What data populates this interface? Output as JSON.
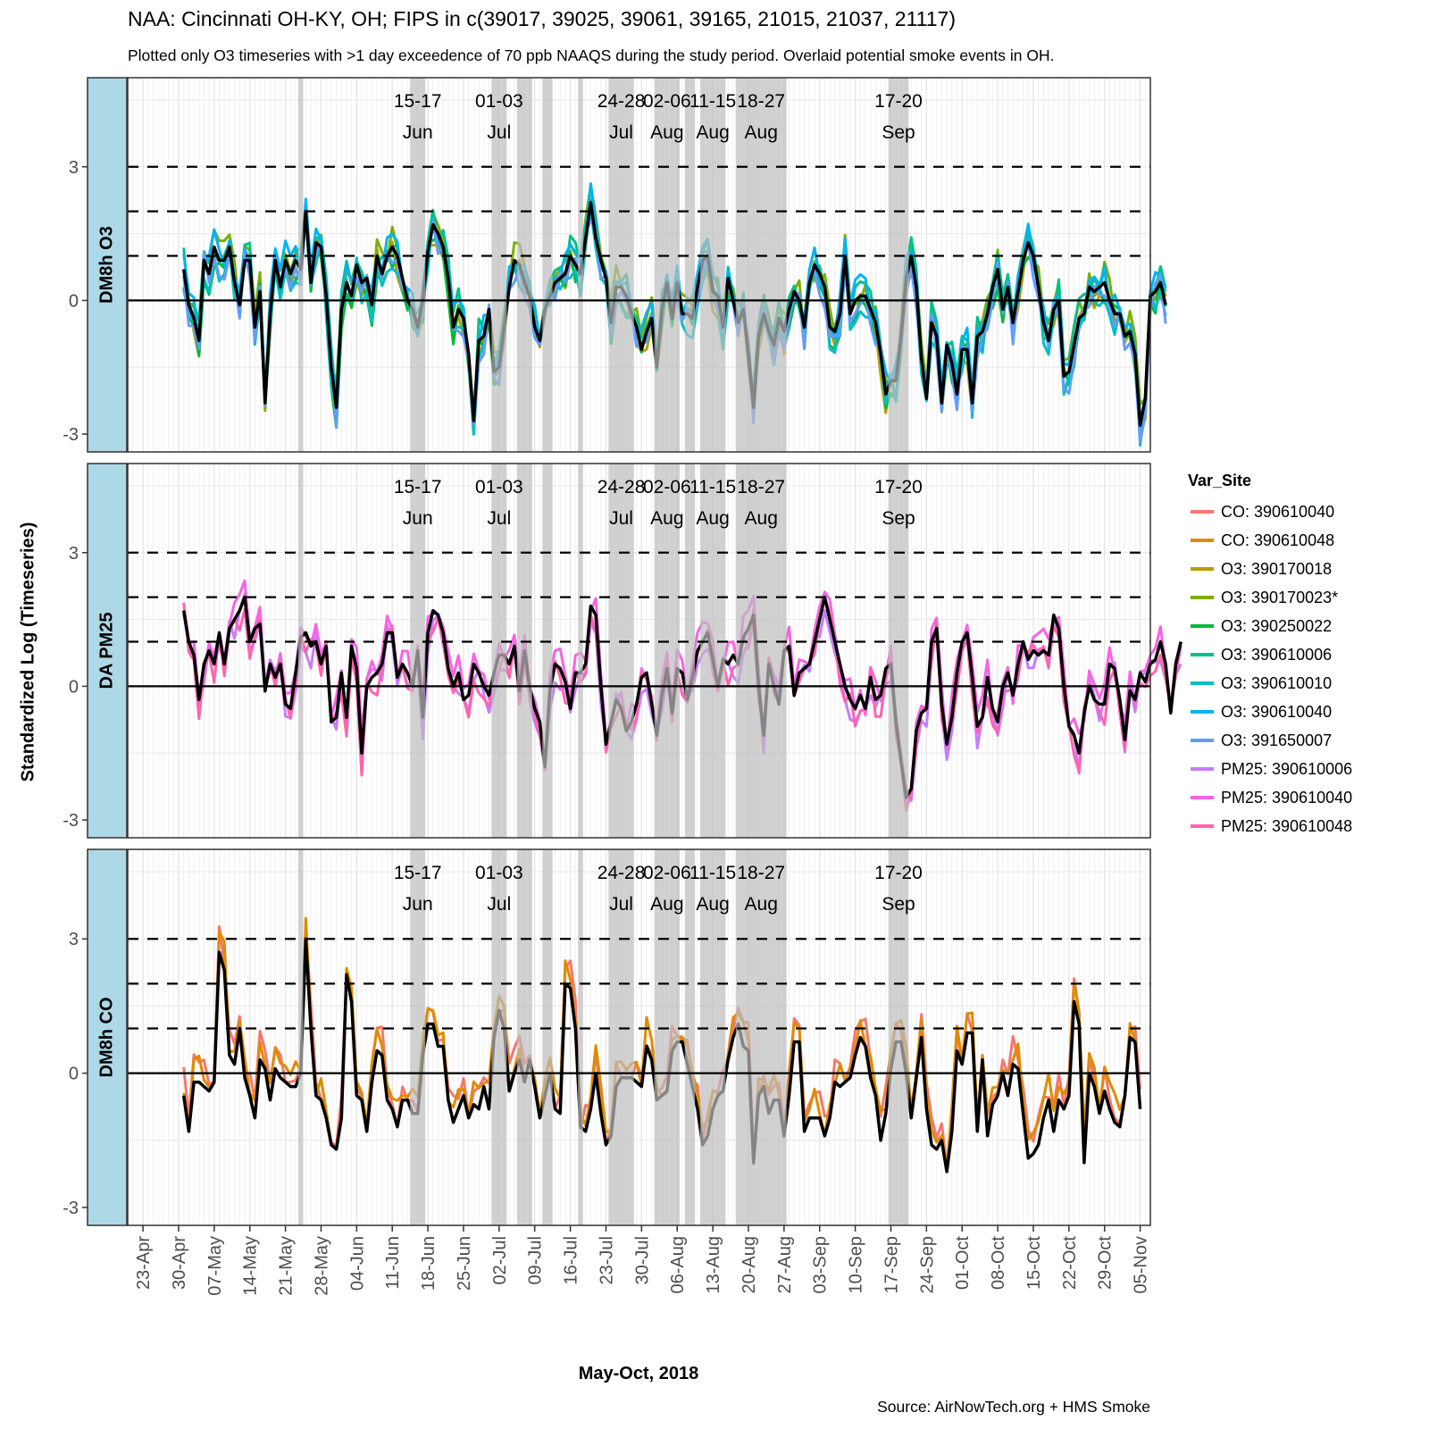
{
  "chart_data": {
    "type": "line",
    "title": "NAA: Cincinnati OH-KY, OH; FIPS in c(39017, 39025, 39061, 39165, 21015, 21037, 21117)",
    "subtitle": "Plotted only O3 timeseries with >1 day exceedence of 70 ppb NAAQS during the study period. Overlaid potential smoke events in OH.",
    "xlabel": "May-Oct, 2018",
    "ylabel": "Standardized Log (Timeseries)",
    "caption": "Source: AirNowTech.org + HMS Smoke",
    "x_range": [
      "2018-04-20",
      "2018-11-07"
    ],
    "x_ticks": [
      "23-Apr",
      "30-Apr",
      "07-May",
      "14-May",
      "21-May",
      "28-May",
      "04-Jun",
      "11-Jun",
      "18-Jun",
      "25-Jun",
      "02-Jul",
      "09-Jul",
      "16-Jul",
      "23-Jul",
      "30-Jul",
      "06-Aug",
      "13-Aug",
      "20-Aug",
      "27-Aug",
      "03-Sep",
      "10-Sep",
      "17-Sep",
      "24-Sep",
      "01-Oct",
      "08-Oct",
      "15-Oct",
      "22-Oct",
      "29-Oct",
      "05-Nov"
    ],
    "y_range": [
      -3.4,
      5.0
    ],
    "y_ticks": [
      -3,
      0,
      3
    ],
    "reference_lines": {
      "solid": [
        0
      ],
      "dashed": [
        1,
        2,
        3
      ]
    },
    "grid": true,
    "legend_title": "Var_Site",
    "legend_position": "right",
    "legend": [
      {
        "label": "CO: 390610040",
        "color": "#F8766D"
      },
      {
        "label": "CO: 390610048",
        "color": "#DE8C00"
      },
      {
        "label": "O3: 390170018",
        "color": "#B79F00"
      },
      {
        "label": "O3: 390170023*",
        "color": "#7CAE00"
      },
      {
        "label": "O3: 390250022",
        "color": "#00BA38"
      },
      {
        "label": "O3: 390610006",
        "color": "#00C08B"
      },
      {
        "label": "O3: 390610010",
        "color": "#00BFC4"
      },
      {
        "label": "O3: 390610040",
        "color": "#00B4F0"
      },
      {
        "label": "O3: 391650007",
        "color": "#619CFF"
      },
      {
        "label": "PM25: 390610006",
        "color": "#C77CFF"
      },
      {
        "label": "PM25: 390610040",
        "color": "#F564E3"
      },
      {
        "label": "PM25: 390610048",
        "color": "#FF64B0"
      }
    ],
    "smoke_events": [
      {
        "start": "2018-05-24",
        "end": "2018-05-24",
        "label_top": "",
        "label_bottom": ""
      },
      {
        "start": "2018-06-15",
        "end": "2018-06-17",
        "label_top": "15-17",
        "label_bottom": "Jun"
      },
      {
        "start": "2018-07-01",
        "end": "2018-07-03",
        "label_top": "01-03",
        "label_bottom": "Jul"
      },
      {
        "start": "2018-07-06",
        "end": "2018-07-07",
        "label_top": "",
        "label_bottom": ""
      },
      {
        "start": "2018-07-08",
        "end": "2018-07-08",
        "label_top": "",
        "label_bottom": ""
      },
      {
        "start": "2018-07-11",
        "end": "2018-07-12",
        "label_top": "",
        "label_bottom": ""
      },
      {
        "start": "2018-07-18",
        "end": "2018-07-18",
        "label_top": "",
        "label_bottom": ""
      },
      {
        "start": "2018-07-24",
        "end": "2018-07-28",
        "label_top": "24-28",
        "label_bottom": "Jul"
      },
      {
        "start": "2018-08-02",
        "end": "2018-08-06",
        "label_top": "02-06",
        "label_bottom": "Aug"
      },
      {
        "start": "2018-08-08",
        "end": "2018-08-09",
        "label_top": "",
        "label_bottom": ""
      },
      {
        "start": "2018-08-11",
        "end": "2018-08-15",
        "label_top": "11-15",
        "label_bottom": "Aug"
      },
      {
        "start": "2018-08-18",
        "end": "2018-08-27",
        "label_top": "18-27",
        "label_bottom": "Aug"
      },
      {
        "start": "2018-09-17",
        "end": "2018-09-20",
        "label_top": "17-20",
        "label_bottom": "Sep"
      }
    ],
    "panels": [
      {
        "strip": "DM8h O3",
        "series": [
          {
            "name": "O3: 390610040 (mean/bold)",
            "color": "#000000",
            "start": "2018-05-01",
            "values": [
              0.7,
              -0.1,
              -0.4,
              -0.9,
              0.9,
              0.6,
              1.2,
              0.9,
              0.9,
              1.2,
              0.4,
              -0.1,
              0.9,
              0.9,
              -0.6,
              0.2,
              -2.3,
              -0.3,
              0.9,
              0.3,
              0.9,
              0.6,
              0.9,
              0.7,
              2.0,
              0.4,
              1.3,
              1.2,
              0.1,
              -1.5,
              -2.4,
              -0.2,
              0.4,
              0.1,
              0.8,
              0.4,
              0.5,
              -0.1,
              1.0,
              0.6,
              1.0,
              1.2,
              1.0,
              0.5,
              0.0,
              -0.2,
              -0.6,
              0.0,
              1.1,
              1.7,
              1.5,
              1.2,
              0.5,
              -0.6,
              -0.2,
              -0.4,
              -1.2,
              -2.7,
              -0.9,
              -0.8,
              -0.2,
              -1.6,
              -1.5,
              -0.6,
              0.3,
              0.9,
              0.8,
              0.4,
              0.1,
              -0.6,
              -0.9,
              -0.2,
              0.1,
              0.4,
              0.5,
              0.6,
              1.0,
              0.8,
              0.6,
              1.4,
              2.2,
              1.4,
              0.9,
              0.5,
              -0.5,
              0.3,
              0.3,
              0.1,
              -0.3,
              -0.6,
              -1.1,
              -0.7,
              -0.4,
              -1.5,
              -0.2,
              0.4,
              -0.4,
              0.4,
              -0.3,
              -0.3,
              -0.4,
              0.3,
              0.9,
              1.0,
              0.2,
              0.1,
              -0.6,
              0.5,
              0.0,
              -0.5,
              -0.2,
              -1.2,
              -2.4,
              -0.8,
              -0.3,
              -0.7,
              -1.0,
              -0.4,
              -0.7,
              -0.2,
              0.2,
              0.0,
              -0.6,
              0.4,
              0.8,
              0.6,
              0.3,
              -0.6,
              -0.7,
              -0.3,
              1.0,
              -0.3,
              0.0,
              0.1,
              0.1,
              -0.2,
              -0.5,
              -1.2,
              -2.1,
              -1.8,
              -1.8,
              -0.8,
              0.5,
              1.0,
              0.3,
              -1.3,
              -2.2,
              -0.5,
              -0.8,
              -2.3,
              -1.0,
              -1.4,
              -2.1,
              -1.1,
              -1.1,
              -2.3,
              -0.8,
              -0.7,
              -0.3,
              0.3,
              0.7,
              -0.2,
              0.3,
              -0.5,
              0.2,
              0.9,
              1.3,
              1.0,
              0.3,
              -0.5,
              -0.9,
              -0.2,
              0.0,
              -1.7,
              -1.6,
              -1.0,
              -0.4,
              -0.3,
              0.3,
              0.2,
              0.3,
              0.4,
              0.0,
              -0.3,
              -0.3,
              -0.8,
              -0.7,
              -1.2,
              -2.8,
              -2.2,
              0.1,
              0.2,
              0.4,
              -0.1
            ]
          },
          {
            "name": "O3 sites (others)",
            "colors": [
              "#B79F00",
              "#7CAE00",
              "#00BA38",
              "#00C08B",
              "#00BFC4",
              "#00B4F0",
              "#619CFF"
            ]
          }
        ]
      },
      {
        "strip": "DA PM25",
        "series": [
          {
            "name": "PM25 (mean/bold)",
            "color": "#000000",
            "start": "2018-05-01",
            "values": [
              1.7,
              1.0,
              0.7,
              -0.3,
              0.5,
              0.8,
              0.5,
              1.2,
              0.5,
              1.3,
              1.5,
              1.7,
              2.0,
              1.0,
              1.3,
              1.4,
              -0.1,
              0.5,
              0.2,
              0.5,
              -0.4,
              -0.5,
              0.3,
              1.1,
              1.2,
              0.9,
              1.0,
              0.5,
              0.9,
              -0.8,
              -0.7,
              0.3,
              -0.7,
              0.9,
              0.4,
              -1.5,
              0.0,
              0.2,
              0.3,
              0.5,
              1.2,
              1.2,
              0.2,
              0.5,
              0.3,
              0.0,
              0.8,
              -0.7,
              1.2,
              1.7,
              1.6,
              1.2,
              0.4,
              0.0,
              0.3,
              -0.3,
              -0.2,
              0.5,
              0.3,
              0.0,
              -0.2,
              0.3,
              0.7,
              0.7,
              0.5,
              0.9,
              -0.1,
              0.8,
              0.0,
              -0.5,
              -0.8,
              -1.8,
              -0.1,
              0.5,
              0.4,
              0.1,
              -0.5,
              0.3,
              0.3,
              0.5,
              1.8,
              1.6,
              0.0,
              -1.3,
              -0.8,
              -0.3,
              -0.5,
              -1.0,
              -0.8,
              -0.4,
              0.2,
              0.3,
              -0.4,
              -1.1,
              -0.2,
              0.4,
              -0.6,
              0.4,
              0.3,
              -0.3,
              0.2,
              0.8,
              1.0,
              1.2,
              0.6,
              0.0,
              0.6,
              0.5,
              0.7,
              0.5,
              1.1,
              1.3,
              1.6,
              0.0,
              -1.1,
              0.5,
              0.0,
              -0.4,
              0.8,
              0.9,
              -0.2,
              0.3,
              0.4,
              0.5,
              1.0,
              1.5,
              2.0,
              1.5,
              1.0,
              0.5,
              0.0,
              -0.3,
              -0.5,
              -0.2,
              -0.5,
              0.2,
              -0.3,
              -0.2,
              0.4,
              0.5,
              -0.8,
              -1.7,
              -2.5,
              -2.3,
              -1.0,
              -0.6,
              -0.5,
              1.0,
              1.3,
              -0.4,
              -1.3,
              -0.7,
              0.3,
              1.0,
              1.2,
              0.2,
              -0.9,
              -0.7,
              0.2,
              -0.5,
              -0.8,
              0.0,
              0.3,
              -0.2,
              0.5,
              1.0,
              0.6,
              0.8,
              0.7,
              0.8,
              0.7,
              1.6,
              1.3,
              0.0,
              -0.9,
              -1.1,
              -1.5,
              -0.6,
              0.0,
              -0.3,
              -0.4,
              -0.4,
              0.5,
              0.4,
              -0.3,
              -1.2,
              -0.1,
              -0.3,
              0.3,
              0.1,
              0.5,
              0.6,
              1.0,
              0.5,
              -0.6,
              0.5,
              1.0
            ]
          },
          {
            "name": "PM25 sites (others)",
            "colors": [
              "#C77CFF",
              "#F564E3",
              "#FF64B0"
            ]
          }
        ]
      },
      {
        "strip": "DM8h CO",
        "series": [
          {
            "name": "CO (mean/bold)",
            "color": "#000000",
            "start": "2018-05-01",
            "values": [
              -0.5,
              -1.3,
              -0.2,
              -0.2,
              -0.3,
              -0.4,
              -0.2,
              2.7,
              2.3,
              0.4,
              0.2,
              1.0,
              -0.1,
              -0.5,
              -1.0,
              0.3,
              0.1,
              -0.6,
              0.1,
              -0.1,
              -0.2,
              -0.3,
              -0.3,
              0.0,
              3.0,
              1.0,
              -0.5,
              -0.6,
              -1.0,
              -1.6,
              -1.7,
              -1.0,
              2.2,
              1.6,
              -0.5,
              -0.6,
              -1.3,
              -0.2,
              0.5,
              0.4,
              -0.6,
              -0.8,
              -1.2,
              -0.6,
              -0.6,
              -0.9,
              -0.9,
              0.4,
              1.1,
              1.1,
              0.6,
              0.6,
              -0.6,
              -1.1,
              -0.8,
              -0.5,
              -1.0,
              -0.7,
              -0.8,
              -0.3,
              -0.8,
              0.8,
              1.4,
              1.0,
              -0.4,
              0.0,
              0.3,
              -0.2,
              0.3,
              -0.3,
              -1.0,
              -0.5,
              0.0,
              -0.8,
              -0.9,
              2.0,
              1.9,
              1.0,
              -1.2,
              -1.3,
              -0.8,
              0.0,
              -0.9,
              -1.6,
              -1.4,
              -0.3,
              -0.1,
              -0.1,
              -0.1,
              -0.2,
              -0.3,
              0.6,
              0.3,
              -0.6,
              -0.5,
              -0.4,
              0.5,
              0.7,
              0.7,
              0.2,
              -0.3,
              -0.8,
              -1.6,
              -1.4,
              -0.8,
              -0.5,
              -0.4,
              0.3,
              0.8,
              1.1,
              0.6,
              0.5,
              -2.0,
              -0.5,
              -0.3,
              -0.9,
              -0.6,
              -0.6,
              -1.4,
              -0.5,
              0.7,
              0.7,
              -1.3,
              -1.0,
              -1.0,
              -1.0,
              -1.4,
              -1.0,
              -0.2,
              -0.3,
              -0.2,
              -0.1,
              0.4,
              0.8,
              0.6,
              -0.1,
              -0.5,
              -1.5,
              -0.9,
              0.1,
              0.7,
              0.7,
              0.0,
              -1.0,
              -0.1,
              0.8,
              -0.8,
              -1.6,
              -1.7,
              -1.5,
              -2.2,
              -1.3,
              0.5,
              0.2,
              0.9,
              0.9,
              -1.3,
              0.3,
              -1.4,
              -0.7,
              -0.5,
              0.0,
              -0.5,
              0.2,
              0.1,
              -0.9,
              -1.9,
              -1.8,
              -1.6,
              -1.0,
              -0.6,
              -1.3,
              -0.6,
              -0.8,
              -0.5,
              1.6,
              1.1,
              -2.0,
              0.0,
              -0.3,
              -0.9,
              -0.4,
              -0.8,
              -1.1,
              -1.2,
              -0.5,
              0.8,
              0.7,
              -0.8
            ]
          },
          {
            "name": "CO sites (others)",
            "colors": [
              "#F8766D",
              "#DE8C00"
            ]
          }
        ]
      }
    ]
  }
}
